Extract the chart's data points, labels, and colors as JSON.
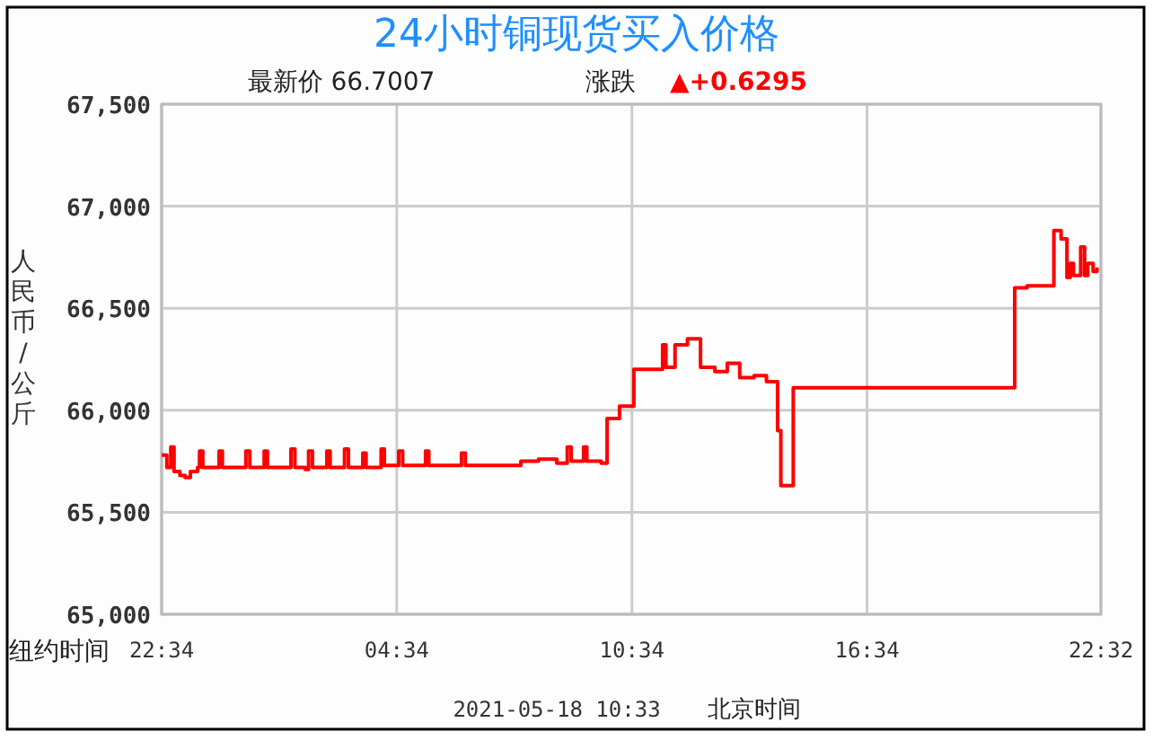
{
  "chart_data": {
    "type": "step",
    "title": "24小时铜现货买入价格",
    "subtitle": "最新价  66.7007",
    "annotations": [
      "涨跌",
      "▲+0.6295",
      "纽约时间",
      "2021-05-18 10:33",
      "北京时间"
    ],
    "ylabel": "人民币/公斤",
    "xlim": [
      "2021-05-16T22:34",
      "2021-05-17T22:32"
    ],
    "xticks": [
      {
        "value": "2021-05-16T22:34",
        "label": "22:34"
      },
      {
        "value": "2021-05-17T04:34",
        "label": "04:34"
      },
      {
        "value": "2021-05-17T10:34",
        "label": "10:34"
      },
      {
        "value": "2021-05-17T16:34",
        "label": "16:34"
      },
      {
        "value": "2021-05-17T22:32",
        "label": "22:32"
      }
    ],
    "ylim": [
      65000,
      67500
    ],
    "yticks": [
      {
        "value": 65000,
        "label": "65,000"
      },
      {
        "value": 65500,
        "label": "65,500"
      },
      {
        "value": 66000,
        "label": "66,000"
      },
      {
        "value": 66500,
        "label": "66,500"
      },
      {
        "value": 67000,
        "label": "67,000"
      },
      {
        "value": 67500,
        "label": "67,500"
      }
    ],
    "grid": true,
    "marker": "none",
    "line_style": "solid",
    "series": [
      {
        "color": "#ff0000",
        "x": [
          "2021-05-16T22:34",
          "2021-05-16T22:42",
          "2021-05-16T22:48",
          "2021-05-16T22:53",
          "2021-05-16T23:02",
          "2021-05-16T23:10",
          "2021-05-16T23:18",
          "2021-05-16T23:29",
          "2021-05-16T23:32",
          "2021-05-16T23:37",
          "2021-05-16T23:56",
          "2021-05-17T00:02",
          "2021-05-17T00:07",
          "2021-05-17T00:38",
          "2021-05-17T00:43",
          "2021-05-17T00:49",
          "2021-05-17T01:05",
          "2021-05-17T01:11",
          "2021-05-17T01:16",
          "2021-05-17T01:46",
          "2021-05-17T01:52",
          "2021-05-17T01:58",
          "2021-05-17T02:14",
          "2021-05-17T02:19",
          "2021-05-17T02:25",
          "2021-05-17T02:41",
          "2021-05-17T02:47",
          "2021-05-17T02:52",
          "2021-05-17T03:09",
          "2021-05-17T03:14",
          "2021-05-17T03:20",
          "2021-05-17T03:37",
          "2021-05-17T03:42",
          "2021-05-17T03:47",
          "2021-05-17T04:04",
          "2021-05-17T04:10",
          "2021-05-17T04:15",
          "2021-05-17T04:31",
          "2021-05-17T04:37",
          "2021-05-17T04:43",
          "2021-05-17T05:13",
          "2021-05-17T05:18",
          "2021-05-17T05:23",
          "2021-05-17T06:08",
          "2021-05-17T06:13",
          "2021-05-17T06:19",
          "2021-05-17T07:30",
          "2021-05-17T07:44",
          "2021-05-17T08:11",
          "2021-05-17T08:25",
          "2021-05-17T08:39",
          "2021-05-17T08:55",
          "2021-05-17T09:01",
          "2021-05-17T09:20",
          "2021-05-17T09:25",
          "2021-05-17T09:47",
          "2021-05-17T09:56",
          "2021-05-17T10:15",
          "2021-05-17T10:37",
          "2021-05-17T11:21",
          "2021-05-17T11:26",
          "2021-05-17T11:40",
          "2021-05-17T11:59",
          "2021-05-17T12:19",
          "2021-05-17T12:41",
          "2021-05-17T13:00",
          "2021-05-17T13:19",
          "2021-05-17T13:41",
          "2021-05-17T14:00",
          "2021-05-17T14:17",
          "2021-05-17T14:22",
          "2021-05-17T14:41",
          "2021-05-17T20:20",
          "2021-05-17T20:39",
          "2021-05-17T21:20",
          "2021-05-17T21:31",
          "2021-05-17T21:40",
          "2021-05-17T21:45",
          "2021-05-17T21:50",
          "2021-05-17T22:01",
          "2021-05-17T22:07",
          "2021-05-17T22:12",
          "2021-05-17T22:20",
          "2021-05-17T22:26"
        ],
        "values": [
          65780,
          65720,
          65820,
          65700,
          65680,
          65670,
          65700,
          65720,
          65800,
          65720,
          65720,
          65800,
          65720,
          65720,
          65800,
          65720,
          65720,
          65800,
          65720,
          65720,
          65810,
          65720,
          65710,
          65800,
          65720,
          65720,
          65800,
          65720,
          65720,
          65810,
          65720,
          65720,
          65790,
          65720,
          65720,
          65810,
          65730,
          65730,
          65800,
          65730,
          65730,
          65800,
          65730,
          65730,
          65790,
          65730,
          65730,
          65750,
          65760,
          65760,
          65740,
          65820,
          65750,
          65820,
          65750,
          65740,
          65960,
          66020,
          66200,
          66320,
          66210,
          66320,
          66350,
          66210,
          66190,
          66230,
          66160,
          66170,
          66140,
          65900,
          65630,
          66110,
          66600,
          66610,
          66880,
          66840,
          66650,
          66720,
          66660,
          66800,
          66660,
          66720,
          66680,
          66700
        ]
      }
    ]
  }
}
